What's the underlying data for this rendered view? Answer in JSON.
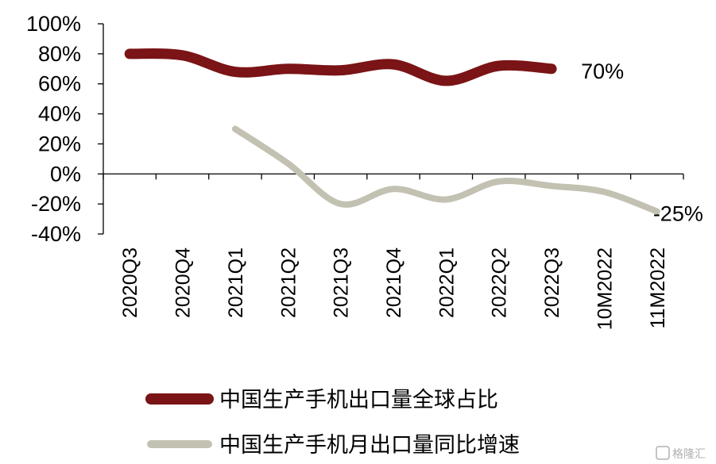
{
  "chart_data": {
    "type": "line",
    "categories": [
      "2020Q3",
      "2020Q4",
      "2021Q1",
      "2021Q2",
      "2021Q3",
      "2021Q4",
      "2022Q1",
      "2022Q2",
      "2022Q3",
      "10M2022",
      "11M2022"
    ],
    "y_ticks": [
      "100%",
      "80%",
      "60%",
      "40%",
      "20%",
      "0%",
      "-20%",
      "-40%"
    ],
    "ylim": [
      -40,
      100
    ],
    "series": [
      {
        "name": "中国生产手机出口量全球占比",
        "color": "#7a1416",
        "values": [
          80,
          79,
          68,
          70,
          69,
          73,
          62,
          72,
          70,
          null,
          null
        ]
      },
      {
        "name": "中国生产手机月出口量同比增速",
        "color": "#c3c1b2",
        "values": [
          null,
          null,
          30,
          7,
          -20,
          -10,
          -17,
          -5,
          -8,
          -12,
          -25
        ]
      }
    ],
    "annotations": [
      {
        "text": "70%",
        "series": 0,
        "index": 8
      },
      {
        "text": "-25%",
        "series": 1,
        "index": 10
      }
    ],
    "legend_position": "bottom",
    "grid": false
  },
  "watermark": "格隆汇"
}
